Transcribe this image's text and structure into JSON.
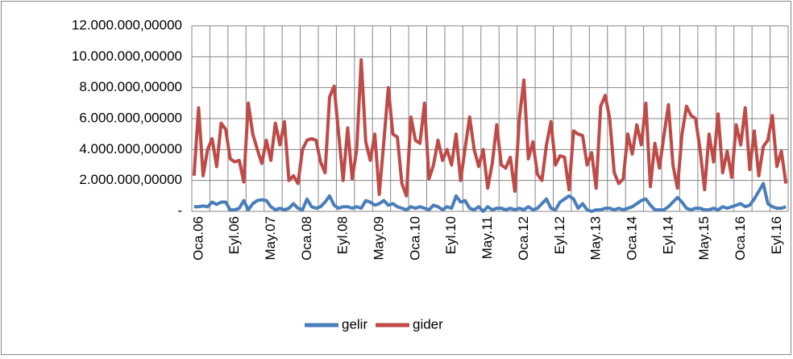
{
  "chart_data": {
    "type": "line",
    "categories": [
      "Oca.06",
      null,
      null,
      null,
      null,
      null,
      null,
      null,
      "Eyl.06",
      null,
      null,
      null,
      null,
      null,
      null,
      null,
      "May.07",
      null,
      null,
      null,
      null,
      null,
      null,
      null,
      "Oca.08",
      null,
      null,
      null,
      null,
      null,
      null,
      null,
      "Eyl.08",
      null,
      null,
      null,
      null,
      null,
      null,
      null,
      "May.09",
      null,
      null,
      null,
      null,
      null,
      null,
      null,
      "Oca.10",
      null,
      null,
      null,
      null,
      null,
      null,
      null,
      "Eyl.10",
      null,
      null,
      null,
      null,
      null,
      null,
      null,
      "May.11",
      null,
      null,
      null,
      null,
      null,
      null,
      null,
      "Oca.12",
      null,
      null,
      null,
      null,
      null,
      null,
      null,
      "Eyl.12",
      null,
      null,
      null,
      null,
      null,
      null,
      null,
      "May.13",
      null,
      null,
      null,
      null,
      null,
      null,
      null,
      "Oca.14",
      null,
      null,
      null,
      null,
      null,
      null,
      null,
      "Eyl.14",
      null,
      null,
      null,
      null,
      null,
      null,
      null,
      "May.15",
      null,
      null,
      null,
      null,
      null,
      null,
      null,
      "Oca.16",
      null,
      null,
      null,
      null,
      null,
      null,
      null,
      "Eyl.16",
      null,
      null,
      null
    ],
    "series": [
      {
        "name": "gelir",
        "color": "#4a7ebb",
        "values": [
          300000,
          300000,
          350000,
          300000,
          600000,
          450000,
          600000,
          600000,
          100000,
          100000,
          200000,
          700000,
          100000,
          500000,
          700000,
          750000,
          700000,
          300000,
          100000,
          200000,
          100000,
          200000,
          500000,
          200000,
          100000,
          800000,
          300000,
          200000,
          300000,
          600000,
          1000000,
          400000,
          200000,
          300000,
          300000,
          200000,
          300000,
          200000,
          700000,
          600000,
          400000,
          500000,
          700000,
          400000,
          500000,
          300000,
          200000,
          100000,
          300000,
          200000,
          300000,
          200000,
          100000,
          400000,
          300000,
          100000,
          300000,
          200000,
          1000000,
          600000,
          700000,
          200000,
          100000,
          300000,
          0,
          300000,
          100000,
          200000,
          200000,
          100000,
          200000,
          100000,
          200000,
          100000,
          300000,
          100000,
          200000,
          500000,
          800000,
          200000,
          100000,
          600000,
          800000,
          1000000,
          800000,
          200000,
          500000,
          100000,
          0,
          100000,
          100000,
          200000,
          200000,
          100000,
          200000,
          100000,
          200000,
          300000,
          500000,
          700000,
          800000,
          400000,
          100000,
          100000,
          100000,
          300000,
          600000,
          900000,
          600000,
          200000,
          100000,
          200000,
          200000,
          100000,
          100000,
          200000,
          100000,
          300000,
          200000,
          300000,
          400000,
          500000,
          300000,
          400000,
          800000,
          1300000,
          1800000,
          500000,
          300000,
          200000,
          200000,
          300000
        ]
      },
      {
        "name": "gider",
        "color": "#be4b48",
        "values": [
          2300000,
          6700000,
          2300000,
          4000000,
          4700000,
          2900000,
          5700000,
          5300000,
          3400000,
          3200000,
          3300000,
          1900000,
          7000000,
          5000000,
          4000000,
          3100000,
          4600000,
          3300000,
          5700000,
          4300000,
          5800000,
          2000000,
          2300000,
          1800000,
          4000000,
          4600000,
          4700000,
          4600000,
          3200000,
          2500000,
          7400000,
          8100000,
          5000000,
          2000000,
          5400000,
          2100000,
          4000000,
          9800000,
          4500000,
          3300000,
          5000000,
          1100000,
          4500000,
          8000000,
          5000000,
          4800000,
          1800000,
          1000000,
          6100000,
          4600000,
          4400000,
          7000000,
          2100000,
          3000000,
          4600000,
          3300000,
          4000000,
          3000000,
          5000000,
          2000000,
          4100000,
          6100000,
          4000000,
          2900000,
          4000000,
          1500000,
          3100000,
          5600000,
          3000000,
          2800000,
          3500000,
          1300000,
          6000000,
          8500000,
          3400000,
          4500000,
          2400000,
          2000000,
          4300000,
          5800000,
          3000000,
          3600000,
          3500000,
          1400000,
          5200000,
          5000000,
          4900000,
          3000000,
          3800000,
          1500000,
          6800000,
          7500000,
          6000000,
          2500000,
          1800000,
          2100000,
          5000000,
          3700000,
          5600000,
          4300000,
          7000000,
          1600000,
          4400000,
          2800000,
          4900000,
          6900000,
          3000000,
          1500000,
          5000000,
          6800000,
          6200000,
          6000000,
          4000000,
          1400000,
          5000000,
          3200000,
          6300000,
          2500000,
          3900000,
          2200000,
          5600000,
          4300000,
          6700000,
          2700000,
          5200000,
          2300000,
          4200000,
          4600000,
          6200000,
          2900000,
          3900000,
          1800000
        ]
      }
    ],
    "ylim": [
      0,
      12000000
    ],
    "yticks": [
      {
        "value": 0,
        "label": "-"
      },
      {
        "value": 2000000,
        "label": "2.000.000,00000"
      },
      {
        "value": 4000000,
        "label": "4.000.000,00000"
      },
      {
        "value": 6000000,
        "label": "6.000.000,00000"
      },
      {
        "value": 8000000,
        "label": "8.000.000,00000"
      },
      {
        "value": 10000000,
        "label": "10.000.000,00000"
      },
      {
        "value": 12000000,
        "label": "12.000.000,00000"
      }
    ],
    "grid": true,
    "legend": "bottom"
  }
}
